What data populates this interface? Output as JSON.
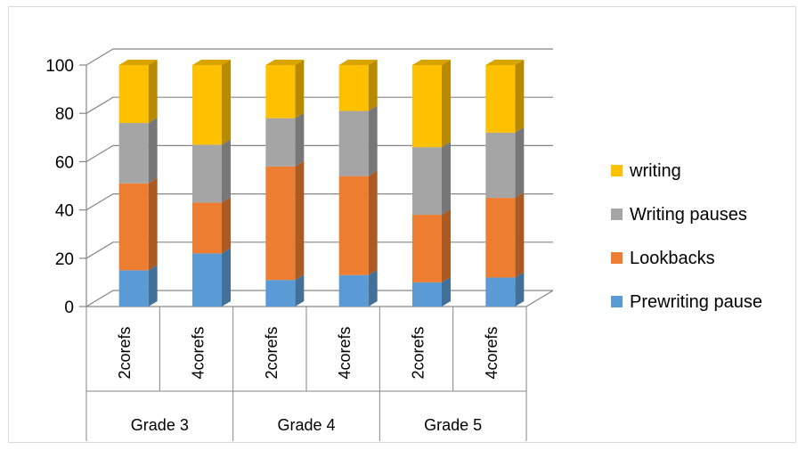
{
  "chart_data": {
    "type": "bar",
    "stacked": true,
    "three_d": true,
    "title": "",
    "xlabel": "",
    "ylabel": "",
    "ylim": [
      0,
      100
    ],
    "yticks": [
      0,
      20,
      40,
      60,
      80,
      100
    ],
    "categories": [
      "2corefs",
      "4corefs",
      "2corefs",
      "4corefs",
      "2corefs",
      "4corefs"
    ],
    "groups": [
      {
        "label": "Grade 3",
        "span": 2
      },
      {
        "label": "Grade 4",
        "span": 2
      },
      {
        "label": "Grade 5",
        "span": 2
      }
    ],
    "series": [
      {
        "name": "Prewriting pause",
        "color": "#5b9bd5",
        "values": [
          15,
          22,
          11,
          13,
          10,
          12
        ]
      },
      {
        "name": "Lookbacks",
        "color": "#ed7d31",
        "values": [
          36,
          21,
          47,
          41,
          28,
          33
        ]
      },
      {
        "name": "Writing pauses",
        "color": "#a5a5a5",
        "values": [
          25,
          24,
          20,
          27,
          28,
          27
        ]
      },
      {
        "name": "writing",
        "color": "#ffc000",
        "values": [
          24,
          33,
          22,
          19,
          34,
          28
        ]
      }
    ],
    "legend_position": "right",
    "legend_order": [
      "writing",
      "Writing pauses",
      "Lookbacks",
      "Prewriting pause"
    ],
    "grid": true
  }
}
